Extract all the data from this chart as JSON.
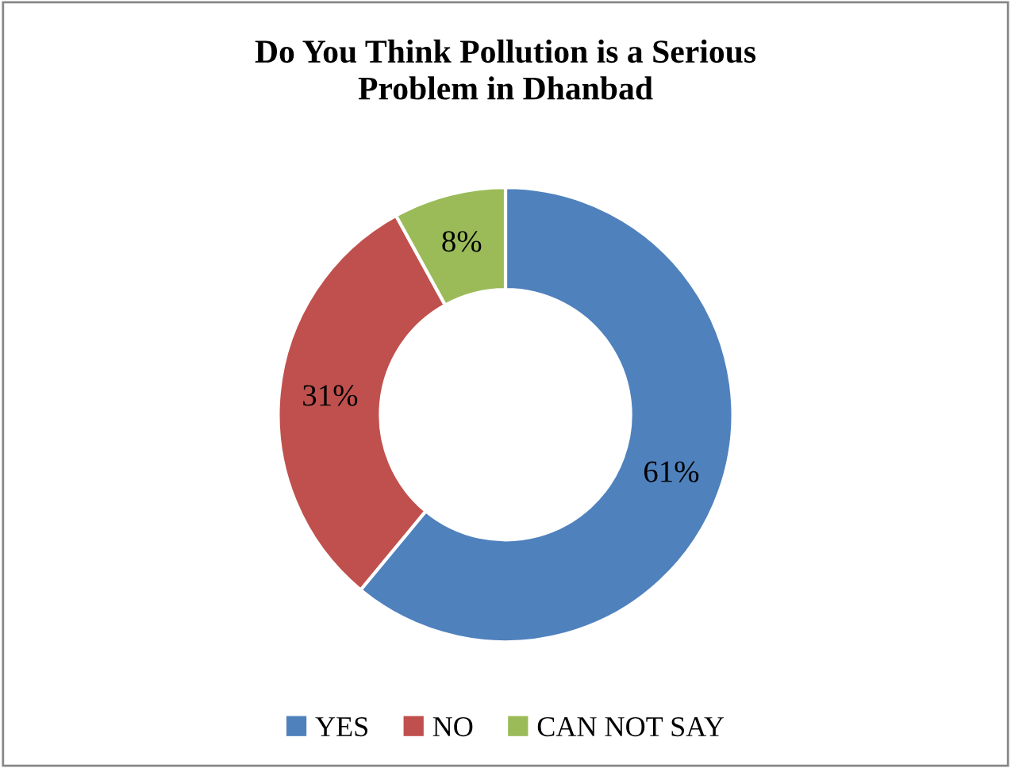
{
  "chart_data": {
    "type": "donut",
    "title": "Do You Think Pollution is a Serious\nProblem in Dhanbad",
    "categories": [
      "YES",
      "NO",
      "CAN NOT SAY"
    ],
    "values": [
      61,
      31,
      8
    ],
    "colors": [
      "#4f81bd",
      "#c0504d",
      "#9bbb59"
    ],
    "value_labels": [
      "61%",
      "31%",
      "8%"
    ],
    "legend": "bottom"
  }
}
